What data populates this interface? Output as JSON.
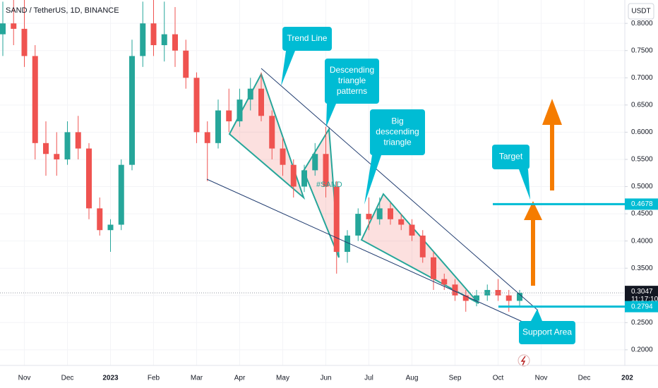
{
  "chart_data": {
    "type": "candlestick",
    "title": "SAND / TetherUS, 1D, BINANCE",
    "currency": "USDT",
    "categories": [
      null,
      null,
      "Nov",
      null,
      null,
      null,
      "Dec",
      null,
      null,
      null,
      "2023",
      null,
      null,
      null,
      "Feb",
      null,
      null,
      null,
      "Mar",
      null,
      null,
      null,
      "Apr",
      null,
      null,
      null,
      "May",
      null,
      null,
      null,
      "Jun",
      null,
      null,
      null,
      "Jul",
      null,
      null,
      null,
      "Aug",
      null,
      null,
      null,
      "Sep",
      null,
      null,
      null,
      "Oct",
      null,
      null,
      null,
      "Nov",
      null,
      null,
      null,
      "Dec",
      null,
      null,
      null,
      "202"
    ],
    "open": [
      0.78,
      0.8,
      0.79,
      0.74,
      0.58,
      0.56,
      0.55,
      0.6,
      0.57,
      0.46,
      0.42,
      0.43,
      0.54,
      0.74,
      0.8,
      0.76,
      0.78,
      0.75,
      0.7,
      0.6,
      0.58,
      0.64,
      0.62,
      0.66,
      0.68,
      0.63,
      0.57,
      0.54,
      0.5,
      0.53,
      0.56,
      0.5,
      0.38,
      0.41,
      0.45,
      0.44,
      0.46,
      0.44,
      0.43,
      0.41,
      0.37,
      0.33,
      0.32,
      0.3,
      0.29,
      0.3,
      0.31,
      0.3,
      0.29,
      null,
      null,
      null,
      null,
      null,
      null,
      null,
      null,
      null,
      null
    ],
    "high": [
      0.84,
      0.85,
      0.86,
      0.76,
      0.62,
      0.6,
      0.62,
      0.63,
      0.58,
      0.48,
      0.44,
      0.55,
      0.77,
      0.84,
      0.86,
      0.84,
      0.83,
      0.77,
      0.71,
      0.62,
      0.66,
      0.68,
      0.68,
      0.7,
      0.71,
      0.64,
      0.59,
      0.55,
      0.54,
      0.58,
      0.61,
      0.51,
      0.42,
      0.46,
      0.48,
      0.48,
      0.47,
      0.45,
      0.44,
      0.42,
      0.38,
      0.34,
      0.33,
      0.31,
      0.31,
      0.32,
      0.33,
      0.31,
      0.31,
      null,
      null,
      null,
      null,
      null,
      null,
      null,
      null,
      null,
      null
    ],
    "low": [
      0.74,
      0.76,
      0.72,
      0.55,
      0.52,
      0.52,
      0.54,
      0.55,
      0.44,
      0.41,
      0.38,
      0.42,
      0.53,
      0.72,
      0.74,
      0.73,
      0.72,
      0.68,
      0.58,
      0.51,
      0.57,
      0.6,
      0.61,
      0.64,
      0.62,
      0.55,
      0.52,
      0.48,
      0.49,
      0.52,
      0.48,
      0.34,
      0.36,
      0.4,
      0.42,
      0.43,
      0.43,
      0.42,
      0.4,
      0.36,
      0.31,
      0.31,
      0.29,
      0.27,
      0.28,
      0.29,
      0.29,
      0.27,
      0.28,
      null,
      null,
      null,
      null,
      null,
      null,
      null,
      null,
      null,
      null
    ],
    "close": [
      0.8,
      0.79,
      0.74,
      0.58,
      0.56,
      0.55,
      0.6,
      0.57,
      0.46,
      0.42,
      0.43,
      0.54,
      0.74,
      0.8,
      0.76,
      0.78,
      0.75,
      0.7,
      0.6,
      0.58,
      0.64,
      0.62,
      0.66,
      0.68,
      0.63,
      0.57,
      0.54,
      0.5,
      0.53,
      0.56,
      0.5,
      0.38,
      0.41,
      0.45,
      0.44,
      0.46,
      0.44,
      0.43,
      0.41,
      0.37,
      0.33,
      0.32,
      0.3,
      0.29,
      0.3,
      0.31,
      0.3,
      0.29,
      0.3047,
      null,
      null,
      null,
      null,
      null,
      null,
      null,
      null,
      null,
      null
    ],
    "up_color": "#26a69a",
    "down_color": "#ef5350",
    "ylim": [
      0.1713,
      0.843
    ],
    "yticks": [
      {
        "value": 0.2,
        "label": "0.2000"
      },
      {
        "value": 0.25,
        "label": "0.2500"
      },
      {
        "value": 0.3,
        "label": "0.3000"
      },
      {
        "value": 0.35,
        "label": "0.3500"
      },
      {
        "value": 0.4,
        "label": "0.4000"
      },
      {
        "value": 0.45,
        "label": "0.4500"
      },
      {
        "value": 0.5,
        "label": "0.5000"
      },
      {
        "value": 0.55,
        "label": "0.5500"
      },
      {
        "value": 0.6,
        "label": "0.6000"
      },
      {
        "value": 0.65,
        "label": "0.6500"
      },
      {
        "value": 0.7,
        "label": "0.7000"
      },
      {
        "value": 0.75,
        "label": "0.7500"
      },
      {
        "value": 0.8,
        "label": "0.8000"
      }
    ],
    "grid": true,
    "levels": [
      0.4678,
      0.2794
    ],
    "level_color": "#00bcd4",
    "last_price": 0.3047,
    "countdown": "11:17:10",
    "symbol_tag": "#SAND",
    "annotations": [
      {
        "lines": [
          "Trend Line"
        ]
      },
      {
        "lines": [
          "Descending",
          "triangle",
          "patterns"
        ]
      },
      {
        "lines": [
          "Big",
          "descending",
          "triangle"
        ]
      },
      {
        "lines": [
          "Target"
        ]
      },
      {
        "lines": [
          "Support Area"
        ]
      }
    ]
  }
}
